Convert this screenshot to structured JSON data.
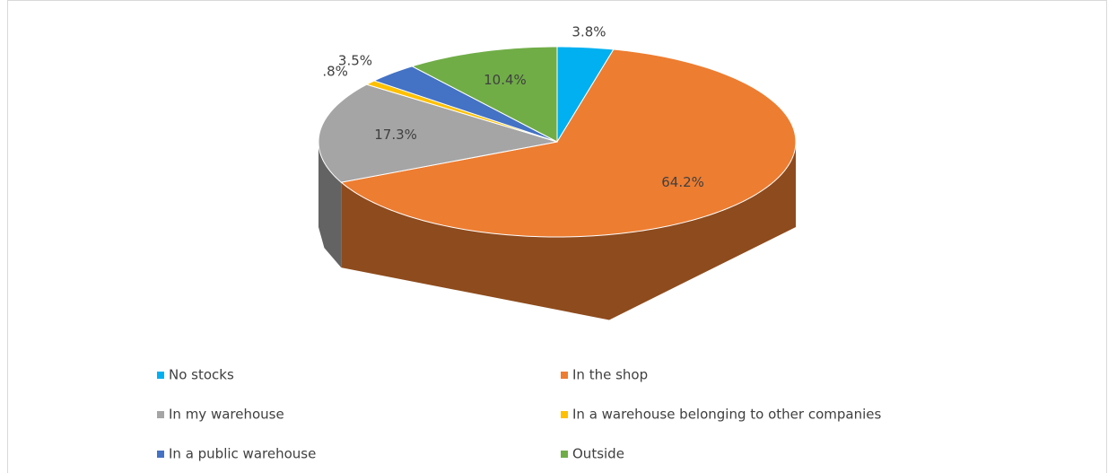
{
  "chart_data": {
    "type": "pie",
    "categories": [
      "No stocks",
      "In the shop",
      "In my warehouse",
      "In a warehouse belonging to other companies",
      "In a public warehouse",
      "Outside"
    ],
    "values": [
      3.8,
      64.2,
      17.3,
      0.8,
      3.5,
      10.4
    ],
    "value_labels": [
      "3.8%",
      "64.2%",
      "17.3%",
      ".8%",
      "3.5%",
      "10.4%"
    ],
    "colors": [
      "#00b0f0",
      "#ed7d31",
      "#a5a5a5",
      "#ffc000",
      "#4472c4",
      "#70ad47"
    ],
    "legend": "bottom"
  }
}
